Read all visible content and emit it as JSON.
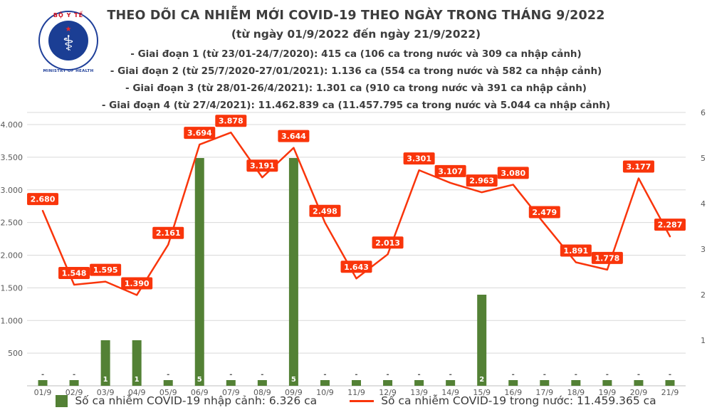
{
  "header": {
    "logo": {
      "top_text": "BỘ Y TẾ",
      "bottom_text": "MINISTRY OF HEALTH"
    },
    "title": "THEO DÕI CA NHIỄM MỚI COVID-19 THEO NGÀY TRONG THÁNG 9/2022",
    "subtitle": "(từ ngày 01/9/2022 đến ngày 21/9/2022)",
    "stages": [
      "- Giai đoạn 1 (từ 23/01-24/7/2020): 415 ca (106 ca trong nước và 309 ca nhập cảnh)",
      "- Giai đoạn 2 (từ 25/7/2020-27/01/2021): 1.136 ca (554 ca trong nước và 582 ca nhập cảnh)",
      "- Giai đoạn 3 (từ 28/01-26/4/2021): 1.301 ca (910 ca trong nước và 391 ca nhập cảnh)",
      "- Giai đoạn 4 (từ 27/4/2021): 11.462.839 ca (11.457.795 ca trong nước và 5.044 ca nhập cảnh)"
    ]
  },
  "chart_data": {
    "type": "bar+line combo",
    "categories": [
      "01/9",
      "02/9",
      "03/9",
      "04/9",
      "05/9",
      "06/9",
      "07/9",
      "08/9",
      "09/9",
      "10/9",
      "11/9",
      "12/9",
      "13/9",
      "14/9",
      "15/9",
      "16/9",
      "17/9",
      "18/9",
      "19/9",
      "20/9",
      "21/9"
    ],
    "series": [
      {
        "name": "Số ca nhiễm COVID-19 nhập cảnh",
        "type": "bar",
        "axis": "right",
        "color": "#538135",
        "values": [
          0,
          0,
          1,
          1,
          0,
          5,
          0,
          0,
          5,
          0,
          0,
          0,
          0,
          0,
          2,
          0,
          0,
          0,
          0,
          0,
          0
        ],
        "labels": [
          "-",
          "-",
          "1",
          "1",
          "-",
          "5",
          "-",
          "-",
          "5",
          "-",
          "-",
          "-",
          "-",
          "-",
          "2",
          "-",
          "-",
          "-",
          "-",
          "-",
          "-"
        ]
      },
      {
        "name": "Số ca nhiễm COVID-19 trong nước",
        "type": "line",
        "axis": "left",
        "color": "#f9350b",
        "values": [
          2680,
          1548,
          1595,
          1390,
          2161,
          3694,
          3878,
          3191,
          3644,
          2498,
          1643,
          2013,
          3301,
          3107,
          2963,
          3080,
          2479,
          1891,
          1778,
          3177,
          2287
        ],
        "labels": [
          "2.680",
          "1.548",
          "1.595",
          "1.390",
          "2.161",
          "3.694",
          "3.878",
          "3.191",
          "3.644",
          "2.498",
          "1.643",
          "2.013",
          "3.301",
          "3.107",
          "2.963",
          "3.080",
          "2.479",
          "1.891",
          "1.778",
          "3.177",
          "2.287"
        ]
      }
    ],
    "left_axis": {
      "ticks": [
        "4.000",
        "3.500",
        "3.000",
        "2.500",
        "2.000",
        "1.500",
        "1.000",
        "500"
      ],
      "tick_values": [
        4000,
        3500,
        3000,
        2500,
        2000,
        1500,
        1000,
        500
      ],
      "max": 4000,
      "min": 0
    },
    "right_axis": {
      "ticks": [
        6,
        5,
        4,
        3,
        2,
        1
      ],
      "max": 6,
      "min": 0
    },
    "grid": "horizontal",
    "legend_position": "bottom",
    "legend": [
      {
        "marker": "bar",
        "color": "#538135",
        "label": "Số ca nhiễm COVID-19 nhập cảnh: 6.326 ca"
      },
      {
        "marker": "line",
        "color": "#f9350b",
        "label": "Số ca nhiễm COVID-19 trong nước: 11.459.365 ca"
      }
    ]
  }
}
